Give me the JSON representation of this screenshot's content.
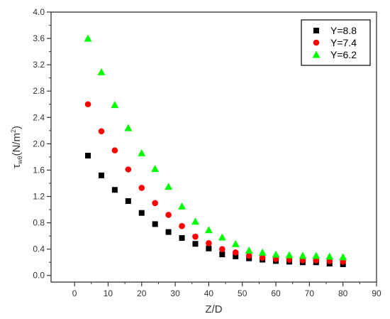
{
  "chart_data": {
    "type": "scatter",
    "title": "",
    "xlabel": "Z/D",
    "ylabel": {
      "main": "τ",
      "subscript": "wθ",
      "unit_open": "(N/m",
      "unit_sup": "2",
      "unit_close": ")"
    },
    "xlim": [
      -7,
      90
    ],
    "ylim": [
      -0.1,
      4.0
    ],
    "xticks": [
      0,
      10,
      20,
      30,
      40,
      50,
      60,
      70,
      80,
      90
    ],
    "xtick_labels": [
      "0",
      "10",
      "20",
      "30",
      "40",
      "50",
      "60",
      "70",
      "80",
      "90"
    ],
    "yticks": [
      0.0,
      0.4,
      0.8,
      1.2,
      1.6,
      2.0,
      2.4,
      2.8,
      3.2,
      3.6,
      4.0
    ],
    "ytick_labels": [
      "0.0",
      "0.4",
      "0.8",
      "1.2",
      "1.6",
      "2.0",
      "2.4",
      "2.8",
      "3.2",
      "3.6",
      "4.0"
    ],
    "grid": false,
    "legend_position": "top-right",
    "x": [
      4,
      8,
      12,
      16,
      20,
      24,
      28,
      32,
      36,
      40,
      44,
      48,
      52,
      56,
      60,
      64,
      68,
      72,
      76,
      80
    ],
    "series": [
      {
        "name": "Y=8.8",
        "marker": "square",
        "color": "#000000",
        "values": [
          1.82,
          1.52,
          1.3,
          1.13,
          0.95,
          0.78,
          0.66,
          0.57,
          0.48,
          0.41,
          0.32,
          0.29,
          0.26,
          0.24,
          0.22,
          0.21,
          0.2,
          0.2,
          0.18,
          0.17
        ]
      },
      {
        "name": "Y=7.4",
        "marker": "circle",
        "color": "#ff0000",
        "values": [
          2.6,
          2.19,
          1.9,
          1.61,
          1.33,
          1.1,
          0.92,
          0.75,
          0.59,
          0.49,
          0.4,
          0.35,
          0.3,
          0.27,
          0.25,
          0.24,
          0.23,
          0.23,
          0.22,
          0.21
        ]
      },
      {
        "name": "Y=6.2",
        "marker": "triangle",
        "color": "#00ff00",
        "values": [
          3.6,
          3.09,
          2.59,
          2.24,
          1.86,
          1.62,
          1.35,
          1.05,
          0.82,
          0.69,
          0.58,
          0.48,
          0.38,
          0.35,
          0.32,
          0.31,
          0.3,
          0.3,
          0.29,
          0.28
        ]
      }
    ]
  }
}
